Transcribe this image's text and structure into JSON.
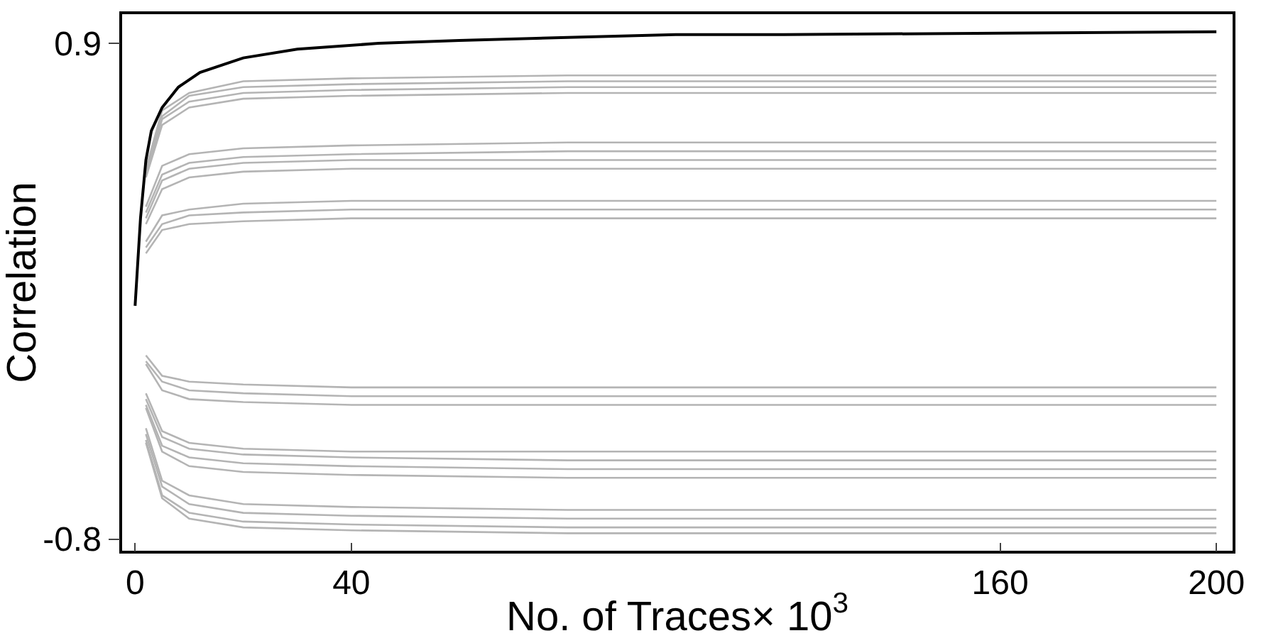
{
  "chart_data": {
    "type": "line",
    "xlabel": "No. of Traces× 10$^{3}$",
    "ylabel": "Correlation",
    "x": [
      2,
      5,
      10,
      20,
      40,
      80,
      120,
      160,
      200
    ],
    "xlim": [
      -2.4,
      203
    ],
    "ylim": [
      -0.84,
      1.0
    ],
    "xticks": [
      0,
      40,
      160,
      200
    ],
    "yticks": [
      0.9,
      -0.8
    ],
    "marker": "none",
    "line_style": "solid",
    "series": [
      {
        "color": "#b4b4b4",
        "values": [
          0.47,
          0.67,
          0.73,
          0.77,
          0.78,
          0.79,
          0.79,
          0.79,
          0.79
        ]
      },
      {
        "color": "#b4b4b4",
        "values": [
          0.46,
          0.65,
          0.72,
          0.75,
          0.76,
          0.77,
          0.77,
          0.77,
          0.77
        ]
      },
      {
        "color": "#b4b4b4",
        "values": [
          0.45,
          0.64,
          0.7,
          0.73,
          0.74,
          0.75,
          0.75,
          0.75,
          0.75
        ]
      },
      {
        "color": "#b4b4b4",
        "values": [
          0.44,
          0.62,
          0.68,
          0.71,
          0.72,
          0.73,
          0.73,
          0.73,
          0.73
        ]
      },
      {
        "color": "#b4b4b4",
        "values": [
          0.34,
          0.48,
          0.52,
          0.54,
          0.55,
          0.56,
          0.56,
          0.56,
          0.56
        ]
      },
      {
        "color": "#b4b4b4",
        "values": [
          0.32,
          0.45,
          0.49,
          0.51,
          0.52,
          0.53,
          0.53,
          0.53,
          0.53
        ]
      },
      {
        "color": "#b4b4b4",
        "values": [
          0.3,
          0.43,
          0.47,
          0.49,
          0.5,
          0.5,
          0.5,
          0.5,
          0.5
        ]
      },
      {
        "color": "#b4b4b4",
        "values": [
          0.28,
          0.4,
          0.44,
          0.46,
          0.47,
          0.47,
          0.47,
          0.47,
          0.47
        ]
      },
      {
        "color": "#b4b4b4",
        "values": [
          0.22,
          0.31,
          0.33,
          0.35,
          0.36,
          0.36,
          0.36,
          0.36,
          0.36
        ]
      },
      {
        "color": "#b4b4b4",
        "values": [
          0.2,
          0.28,
          0.31,
          0.32,
          0.33,
          0.33,
          0.33,
          0.33,
          0.33
        ]
      },
      {
        "color": "#b4b4b4",
        "values": [
          0.18,
          0.26,
          0.28,
          0.29,
          0.3,
          0.3,
          0.3,
          0.3,
          0.3
        ]
      },
      {
        "color": "#b4b4b4",
        "values": [
          -0.17,
          -0.24,
          -0.26,
          -0.27,
          -0.28,
          -0.28,
          -0.28,
          -0.28,
          -0.28
        ]
      },
      {
        "color": "#b4b4b4",
        "values": [
          -0.19,
          -0.26,
          -0.29,
          -0.3,
          -0.31,
          -0.31,
          -0.31,
          -0.31,
          -0.31
        ]
      },
      {
        "color": "#b4b4b4",
        "values": [
          -0.2,
          -0.29,
          -0.32,
          -0.33,
          -0.34,
          -0.34,
          -0.34,
          -0.34,
          -0.34
        ]
      },
      {
        "color": "#b4b4b4",
        "values": [
          -0.3,
          -0.43,
          -0.47,
          -0.49,
          -0.5,
          -0.5,
          -0.5,
          -0.5,
          -0.5
        ]
      },
      {
        "color": "#b4b4b4",
        "values": [
          -0.32,
          -0.45,
          -0.49,
          -0.51,
          -0.52,
          -0.53,
          -0.53,
          -0.53,
          -0.53
        ]
      },
      {
        "color": "#b4b4b4",
        "values": [
          -0.34,
          -0.48,
          -0.52,
          -0.54,
          -0.55,
          -0.56,
          -0.56,
          -0.56,
          -0.56
        ]
      },
      {
        "color": "#b4b4b4",
        "values": [
          -0.35,
          -0.5,
          -0.55,
          -0.57,
          -0.58,
          -0.59,
          -0.59,
          -0.59,
          -0.59
        ]
      },
      {
        "color": "#b4b4b4",
        "values": [
          -0.42,
          -0.6,
          -0.65,
          -0.68,
          -0.69,
          -0.7,
          -0.7,
          -0.7,
          -0.7
        ]
      },
      {
        "color": "#b4b4b4",
        "values": [
          -0.44,
          -0.62,
          -0.68,
          -0.71,
          -0.72,
          -0.73,
          -0.73,
          -0.73,
          -0.73
        ]
      },
      {
        "color": "#b4b4b4",
        "values": [
          -0.46,
          -0.65,
          -0.71,
          -0.74,
          -0.75,
          -0.76,
          -0.76,
          -0.76,
          -0.76
        ]
      },
      {
        "color": "#b4b4b4",
        "values": [
          -0.47,
          -0.66,
          -0.73,
          -0.76,
          -0.77,
          -0.78,
          -0.78,
          -0.78,
          -0.78
        ]
      },
      {
        "color": "#000000",
        "x": [
          0,
          1,
          2,
          3,
          5,
          8,
          12,
          20,
          30,
          45,
          60,
          80,
          100,
          120,
          160,
          200
        ],
        "values": [
          0,
          0.3,
          0.5,
          0.6,
          0.68,
          0.75,
          0.8,
          0.85,
          0.88,
          0.9,
          0.91,
          0.92,
          0.93,
          0.93,
          0.935,
          0.94
        ]
      }
    ]
  }
}
